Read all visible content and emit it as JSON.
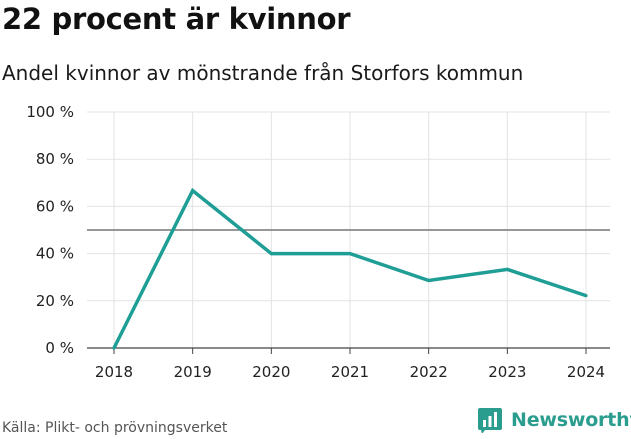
{
  "chart_data": {
    "type": "line",
    "title": "22 procent är kvinnor",
    "subtitle": "Andel kvinnor av mönstrande från Storfors kommun",
    "x": [
      "2018",
      "2019",
      "2020",
      "2021",
      "2022",
      "2023",
      "2024"
    ],
    "series": [
      {
        "values": [
          0,
          66.7,
          40,
          40,
          28.6,
          33.3,
          22.2
        ]
      }
    ],
    "yticks": [
      "0 %",
      "20 %",
      "40 %",
      "60 %",
      "80 %",
      "100 %"
    ],
    "ylim": [
      0,
      100
    ],
    "reference_line": 50,
    "grid": true,
    "colors": {
      "line": "#1f9e96",
      "grid": "#e3e3e3",
      "reference": "#777777"
    }
  },
  "footer": {
    "source": "Källa: Plikt- och prövningsverket",
    "brand": "Newsworthy"
  },
  "brand_icon": "bar-chart-icon"
}
